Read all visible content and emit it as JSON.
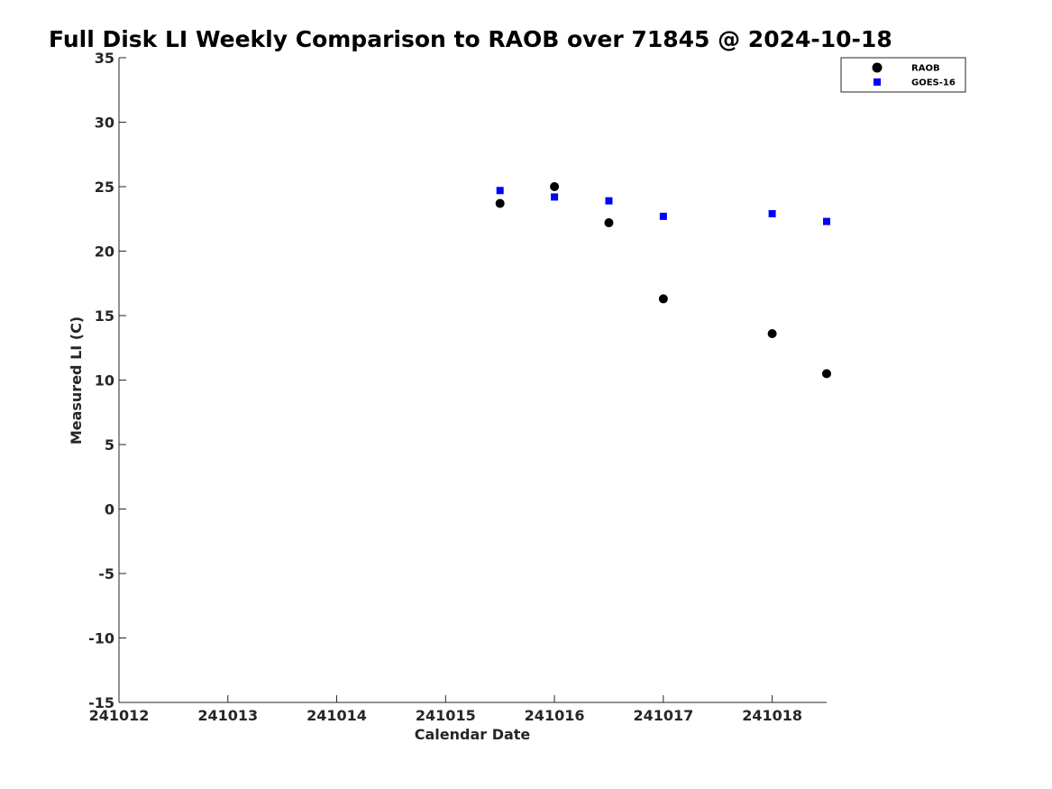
{
  "chart_data": {
    "type": "scatter",
    "title": "Full Disk LI Weekly Comparison to RAOB over 71845 @ 2024-10-18",
    "xlabel": "Calendar Date",
    "ylabel": "Measured LI (C)",
    "x_tick_values": [
      241012,
      241013,
      241014,
      241015,
      241016,
      241017,
      241018
    ],
    "x_tick_labels": [
      "241012",
      "241013",
      "241014",
      "241015",
      "241016",
      "241017",
      "241018"
    ],
    "xlim": [
      241012,
      241018.5
    ],
    "y_ticks": [
      -15,
      -10,
      -5,
      0,
      5,
      10,
      15,
      20,
      25,
      30,
      35
    ],
    "ylim": [
      -15,
      35
    ],
    "grid": false,
    "legend_position": "top-right",
    "series": [
      {
        "name": "RAOB",
        "marker": "circle",
        "color": "#000000",
        "points": [
          {
            "x": 241015.5,
            "y": 23.7
          },
          {
            "x": 241016.0,
            "y": 25.0
          },
          {
            "x": 241016.5,
            "y": 22.2
          },
          {
            "x": 241017.0,
            "y": 16.3
          },
          {
            "x": 241018.0,
            "y": 13.6
          },
          {
            "x": 241018.5,
            "y": 10.5
          }
        ]
      },
      {
        "name": "GOES-16",
        "marker": "square",
        "color": "#0000ff",
        "points": [
          {
            "x": 241015.5,
            "y": 24.7
          },
          {
            "x": 241016.0,
            "y": 24.2
          },
          {
            "x": 241016.5,
            "y": 23.9
          },
          {
            "x": 241017.0,
            "y": 22.7
          },
          {
            "x": 241018.0,
            "y": 22.9
          },
          {
            "x": 241018.5,
            "y": 22.3
          }
        ]
      }
    ]
  }
}
